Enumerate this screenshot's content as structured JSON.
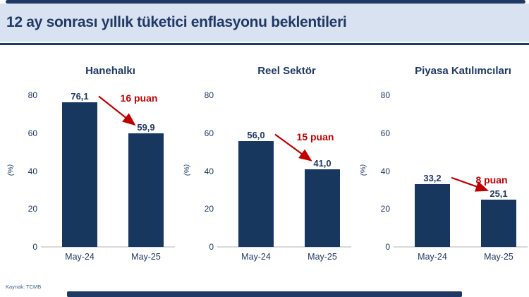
{
  "header": {
    "title": "12 ay sonrası yıllık tüketici enflasyonu beklentileri"
  },
  "footer": {
    "source": "Kaynak: TCMB"
  },
  "colors": {
    "navy_text": "#1f3864",
    "bar_fill": "#17375e",
    "annotation_red": "#c00000",
    "header_bg": "#d9e2f0",
    "axis_line_gray": "#d9d9d9"
  },
  "chart_data": [
    {
      "type": "bar",
      "title": "Hanehalkı",
      "categories": [
        "May-24",
        "May-25"
      ],
      "values": [
        76.1,
        59.9
      ],
      "value_labels": [
        "76,1",
        "59,9"
      ],
      "annotation": "16 puan",
      "xlabel": "",
      "ylabel": "(%)",
      "ylim": [
        0,
        80
      ],
      "yticks": [
        0,
        20,
        40,
        60,
        80
      ],
      "grid": false,
      "legend": "none"
    },
    {
      "type": "bar",
      "title": "Reel Sektör",
      "categories": [
        "May-24",
        "May-25"
      ],
      "values": [
        56.0,
        41.0
      ],
      "value_labels": [
        "56,0",
        "41,0"
      ],
      "annotation": "15 puan",
      "xlabel": "",
      "ylabel": "(%)",
      "ylim": [
        0,
        80
      ],
      "yticks": [
        0,
        20,
        40,
        60,
        80
      ],
      "grid": false,
      "legend": "none"
    },
    {
      "type": "bar",
      "title": "Piyasa Katılımcıları",
      "categories": [
        "May-24",
        "May-25"
      ],
      "values": [
        33.2,
        25.1
      ],
      "value_labels": [
        "33,2",
        "25,1"
      ],
      "annotation": "8 puan",
      "xlabel": "",
      "ylabel": "(%)",
      "ylim": [
        0,
        80
      ],
      "yticks": [
        0,
        20,
        40,
        60,
        80
      ],
      "grid": false,
      "legend": "none"
    }
  ]
}
